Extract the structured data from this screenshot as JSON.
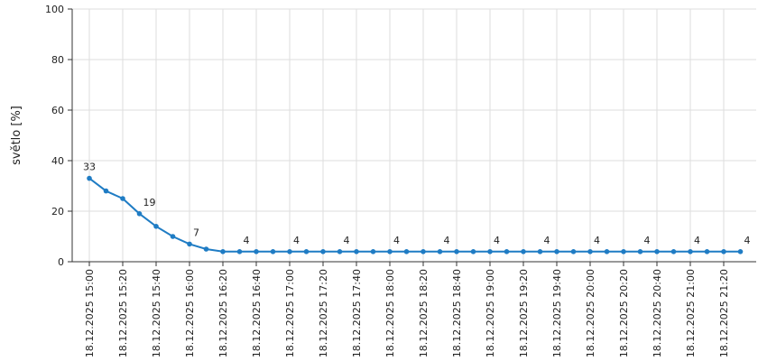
{
  "chart_data": {
    "type": "line",
    "y_label": "světlo [%]",
    "categories": [
      "18.12.2025 15:00",
      null,
      "18.12.2025 15:20",
      null,
      "18.12.2025 15:40",
      null,
      "18.12.2025 16:00",
      null,
      "18.12.2025 16:20",
      null,
      "18.12.2025 16:40",
      null,
      "18.12.2025 17:00",
      null,
      "18.12.2025 17:20",
      null,
      "18.12.2025 17:40",
      null,
      "18.12.2025 18:00",
      null,
      "18.12.2025 18:20",
      null,
      "18.12.2025 18:40",
      null,
      "18.12.2025 19:00",
      null,
      "18.12.2025 19:20",
      null,
      "18.12.2025 19:40",
      null,
      "18.12.2025 20:00",
      null,
      "18.12.2025 20:20",
      null,
      "18.12.2025 20:40",
      null,
      "18.12.2025 21:00",
      null,
      "18.12.2025 21:20",
      null
    ],
    "values": [
      33,
      28,
      25,
      19,
      14,
      10,
      7,
      5,
      4,
      4,
      4,
      4,
      4,
      4,
      4,
      4,
      4,
      4,
      4,
      4,
      4,
      4,
      4,
      4,
      4,
      4,
      4,
      4,
      4,
      4,
      4,
      4,
      4,
      4,
      4,
      4,
      4,
      4,
      4,
      4
    ],
    "value_labels": [
      "33",
      null,
      null,
      "19",
      null,
      null,
      "7",
      null,
      null,
      "4",
      null,
      null,
      "4",
      null,
      null,
      "4",
      null,
      null,
      "4",
      null,
      null,
      "4",
      null,
      null,
      "4",
      null,
      null,
      "4",
      null,
      null,
      "4",
      null,
      null,
      "4",
      null,
      null,
      "4",
      null,
      null,
      "4"
    ],
    "color": "#1f7cc4",
    "ylim": [
      0,
      100
    ],
    "yticks": [
      0,
      20,
      40,
      60,
      80,
      100
    ],
    "grid": true
  }
}
